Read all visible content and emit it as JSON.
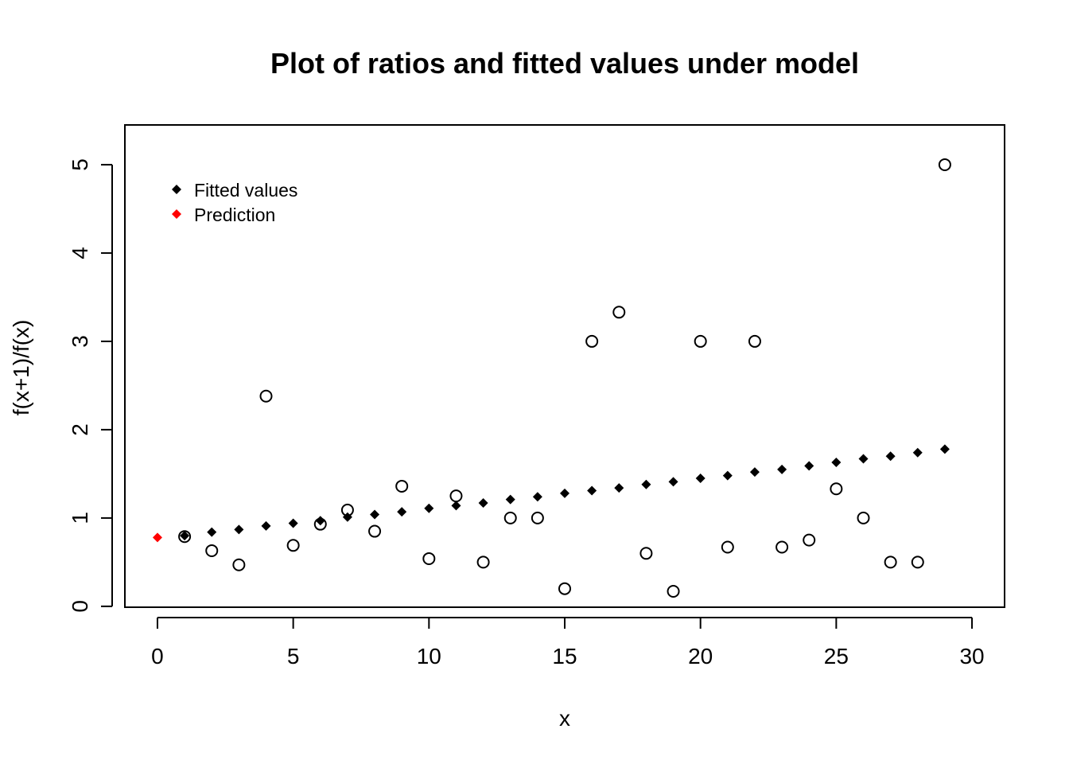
{
  "chart_data": {
    "type": "scatter",
    "title": "Plot of ratios and fitted values under model",
    "xlabel": "x",
    "ylabel": "f(x+1)/f(x)",
    "xlim": [
      -1.2,
      31.2
    ],
    "ylim": [
      -0.01,
      5.45
    ],
    "xticks": [
      0,
      5,
      10,
      15,
      20,
      25,
      30
    ],
    "yticks": [
      0,
      1,
      2,
      3,
      4,
      5
    ],
    "grid": false,
    "legend_position": "top-left",
    "legend": [
      {
        "label": "Fitted values",
        "color": "#000000",
        "marker": "filled-diamond"
      },
      {
        "label": "Prediction",
        "color": "#ff0000",
        "marker": "filled-diamond"
      }
    ],
    "series": [
      {
        "marker": "open-circle",
        "color": "#000000",
        "x": [
          1,
          2,
          3,
          4,
          5,
          6,
          7,
          8,
          9,
          10,
          11,
          12,
          13,
          14,
          15,
          16,
          17,
          18,
          19,
          20,
          21,
          22,
          23,
          24,
          25,
          26,
          27,
          28,
          29
        ],
        "y": [
          0.79,
          0.63,
          0.47,
          2.38,
          0.69,
          0.93,
          1.09,
          0.85,
          1.36,
          0.54,
          1.25,
          0.5,
          1.0,
          1.0,
          0.2,
          3.0,
          3.33,
          0.6,
          0.17,
          3.0,
          0.67,
          3.0,
          0.67,
          0.75,
          1.33,
          1.0,
          0.5,
          0.5,
          5.0
        ]
      },
      {
        "name": "Fitted values",
        "marker": "filled-diamond",
        "color": "#000000",
        "x": [
          1,
          2,
          3,
          4,
          5,
          6,
          7,
          8,
          9,
          10,
          11,
          12,
          13,
          14,
          15,
          16,
          17,
          18,
          19,
          20,
          21,
          22,
          23,
          24,
          25,
          26,
          27,
          28,
          29
        ],
        "y": [
          0.8,
          0.84,
          0.87,
          0.91,
          0.94,
          0.97,
          1.01,
          1.04,
          1.07,
          1.11,
          1.14,
          1.17,
          1.21,
          1.24,
          1.28,
          1.31,
          1.34,
          1.38,
          1.41,
          1.45,
          1.48,
          1.52,
          1.55,
          1.59,
          1.63,
          1.67,
          1.7,
          1.74,
          1.78
        ]
      },
      {
        "name": "Prediction",
        "marker": "filled-diamond",
        "color": "#ff0000",
        "x": [
          0
        ],
        "y": [
          0.78
        ]
      }
    ]
  }
}
